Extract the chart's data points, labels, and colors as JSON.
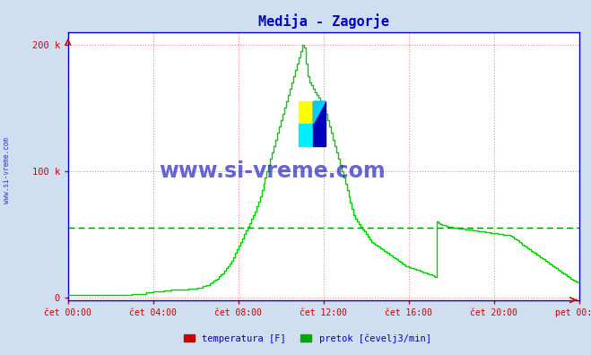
{
  "title": "Medija - Zagorje",
  "title_color": "#0000cc",
  "title_fontsize": 11,
  "bg_color": "#d0dff0",
  "plot_bg_color": "#ffffff",
  "xmin": 0,
  "xmax": 288,
  "ymin": -2000,
  "ymax": 210000,
  "yticks": [
    0,
    100000,
    200000
  ],
  "ytick_labels": [
    "0",
    "100 k",
    "200 k"
  ],
  "xtick_positions": [
    0,
    48,
    96,
    144,
    192,
    240,
    288
  ],
  "xtick_labels": [
    "čet 00:00",
    "čet 04:00",
    "čet 08:00",
    "čet 12:00",
    "čet 16:00",
    "čet 20:00",
    "pet 00:00"
  ],
  "grid_color_v": "#ff8888",
  "grid_color_h": "#ff8888",
  "axis_color": "#0000cc",
  "tick_color": "#cc0000",
  "watermark_text": "www.si-vreme.com",
  "watermark_color": "#0000bb",
  "side_watermark_text": "www.si-vreme.com",
  "dashed_line_value": 55000,
  "dashed_line_color": "#008800",
  "legend_labels": [
    "temperatura [F]",
    "pretok [čevelj3/min]"
  ],
  "legend_colors": [
    "#cc0000",
    "#00aa00"
  ],
  "line_color": "#00cc00",
  "line_width": 1.0,
  "pretok_data": [
    2000,
    2000,
    2000,
    2000,
    2000,
    2000,
    2000,
    2000,
    2000,
    2000,
    2000,
    2000,
    2000,
    2000,
    2000,
    2000,
    2000,
    2000,
    2000,
    2000,
    2000,
    2000,
    2000,
    2000,
    2000,
    2000,
    2000,
    2000,
    2000,
    2000,
    2000,
    2000,
    2000,
    2000,
    2000,
    2000,
    3000,
    3000,
    3000,
    3000,
    3000,
    3000,
    3000,
    3000,
    4000,
    4000,
    4000,
    4000,
    5000,
    5000,
    5000,
    5000,
    5000,
    5000,
    5500,
    5500,
    5500,
    5500,
    6000,
    6000,
    6000,
    6000,
    6000,
    6000,
    6000,
    6500,
    6500,
    6500,
    7000,
    7000,
    7000,
    7000,
    7000,
    8000,
    8000,
    8000,
    9000,
    9000,
    10000,
    10000,
    11000,
    12000,
    13000,
    14000,
    15000,
    17000,
    18000,
    19000,
    21000,
    23000,
    25000,
    27000,
    29000,
    32000,
    35000,
    38000,
    41000,
    44000,
    47000,
    50000,
    53000,
    56000,
    59000,
    62000,
    65000,
    68000,
    72000,
    76000,
    80000,
    85000,
    90000,
    95000,
    100000,
    105000,
    110000,
    115000,
    120000,
    125000,
    130000,
    135000,
    140000,
    145000,
    150000,
    155000,
    160000,
    165000,
    170000,
    175000,
    180000,
    185000,
    190000,
    195000,
    200000,
    198000,
    185000,
    175000,
    170000,
    168000,
    165000,
    162000,
    160000,
    158000,
    155000,
    152000,
    148000,
    145000,
    140000,
    135000,
    130000,
    125000,
    120000,
    115000,
    110000,
    105000,
    100000,
    95000,
    90000,
    85000,
    80000,
    75000,
    70000,
    65000,
    62000,
    60000,
    58000,
    56000,
    54000,
    52000,
    50000,
    48000,
    46000,
    44000,
    43000,
    42000,
    41000,
    40000,
    39000,
    38000,
    37000,
    36000,
    35000,
    34000,
    33000,
    32000,
    31000,
    30000,
    29000,
    28000,
    27000,
    26000,
    25000,
    24500,
    24000,
    23500,
    23000,
    22500,
    22000,
    21500,
    21000,
    20500,
    20000,
    19500,
    19000,
    18500,
    18000,
    17500,
    17000,
    16500,
    60000,
    59000,
    58000,
    57500,
    57000,
    56500,
    56000,
    55800,
    55600,
    55400,
    55200,
    55000,
    54800,
    54600,
    54400,
    54200,
    54000,
    53800,
    53600,
    53400,
    53200,
    53000,
    52800,
    52600,
    52400,
    52200,
    52000,
    51800,
    51600,
    51400,
    51200,
    51000,
    50800,
    50600,
    50400,
    50200,
    50000,
    49800,
    49600,
    49400,
    49200,
    49000,
    48000,
    47000,
    46000,
    45000,
    44000,
    43000,
    42000,
    41000,
    40000,
    39000,
    38000,
    37000,
    36000,
    35000,
    34000,
    33000,
    32000,
    31000,
    30000,
    29000,
    28000,
    27000,
    26000,
    25000,
    24000,
    23000,
    22000,
    21000,
    20000,
    19000,
    18000,
    17000,
    16000,
    15000,
    14000,
    13000,
    12500,
    12000
  ]
}
